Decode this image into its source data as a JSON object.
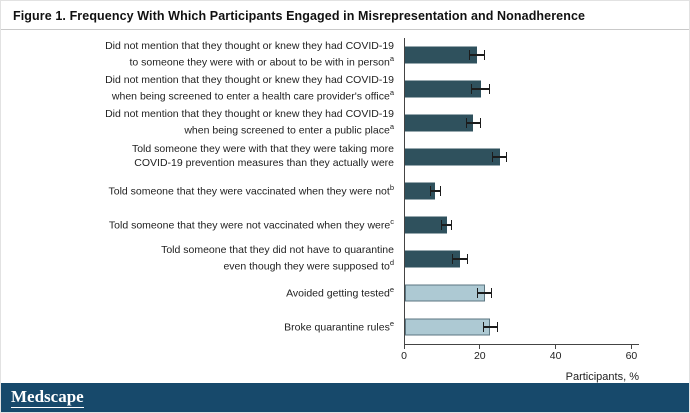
{
  "figure": {
    "title": "Figure 1. Frequency With Which Participants Engaged in Misrepresentation and Nonadherence"
  },
  "chart_data": {
    "type": "bar",
    "orientation": "horizontal",
    "title": "Figure 1. Frequency With Which Participants Engaged in Misrepresentation and Nonadherence",
    "xlabel": "Participants, %",
    "xticks": [
      0,
      20,
      40,
      60
    ],
    "xmax": 62,
    "grid": false,
    "legend": "none",
    "colors": {
      "dark_bar": "#2f515d",
      "light_bar": "#adc9d3",
      "light_bar_border": "#5b7580",
      "axis": "#444444",
      "brand_bar": "#17496b"
    },
    "bars": [
      {
        "label_lines": [
          "Did not mention that they thought or knew they had COVID-19",
          "to someone they were with or about to be with in person"
        ],
        "sup": "a",
        "value": 19,
        "error": 2,
        "color": "dark"
      },
      {
        "label_lines": [
          "Did not mention that they thought or knew they had COVID-19",
          "when being screened to enter a health care provider's office"
        ],
        "sup": "a",
        "value": 20,
        "error": 2.5,
        "color": "dark"
      },
      {
        "label_lines": [
          "Did not mention that they thought or knew they had COVID-19",
          "when being screened to enter a public place"
        ],
        "sup": "a",
        "value": 18,
        "error": 2,
        "color": "dark"
      },
      {
        "label_lines": [
          "Told someone they were with that they were taking more",
          "COVID-19 prevention measures than they actually were"
        ],
        "sup": "",
        "value": 25,
        "error": 2,
        "color": "dark"
      },
      {
        "label_lines": [
          "Told someone that they were vaccinated when they were not"
        ],
        "sup": "b",
        "value": 8,
        "error": 1.5,
        "color": "dark"
      },
      {
        "label_lines": [
          "Told someone that they were not vaccinated when they were"
        ],
        "sup": "c",
        "value": 11,
        "error": 1.5,
        "color": "dark"
      },
      {
        "label_lines": [
          "Told someone that they did not have to quarantine",
          "even though they were supposed to"
        ],
        "sup": "d",
        "value": 14.5,
        "error": 2,
        "color": "dark"
      },
      {
        "label_lines": [
          "Avoided getting tested"
        ],
        "sup": "e",
        "value": 21,
        "error": 2,
        "color": "light"
      },
      {
        "label_lines": [
          "Broke quarantine rules"
        ],
        "sup": "e",
        "value": 22.5,
        "error": 2,
        "color": "light"
      }
    ]
  },
  "footer": {
    "brand": "Medscape"
  }
}
